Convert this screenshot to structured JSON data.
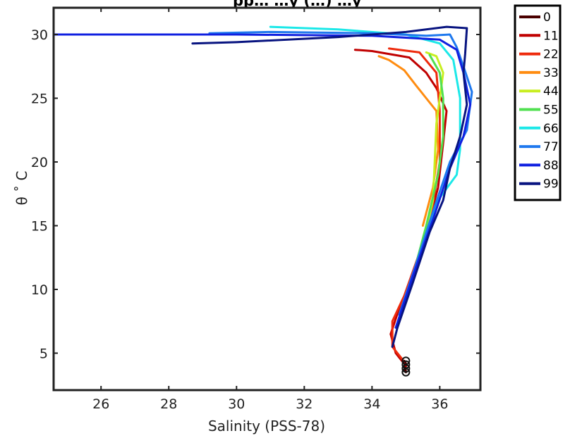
{
  "chart_data": {
    "type": "line",
    "title": "pp…    …y (…) …y",
    "xlabel": "Salinity (PSS-78)",
    "ylabel": "θ ˚ C",
    "xlim": [
      24.6,
      37.2
    ],
    "ylim": [
      2.1,
      32.1
    ],
    "xticks": [
      26,
      28,
      30,
      32,
      34,
      36
    ],
    "yticks": [
      5,
      10,
      15,
      20,
      25,
      30
    ],
    "grid": false,
    "legend_position": "outside-top-right",
    "legend": [
      "0",
      "11",
      "22",
      "33",
      "44",
      "55",
      "66",
      "77",
      "88",
      "99"
    ],
    "colormap": "jet",
    "series": [
      {
        "name": "0",
        "color": "#4a0000",
        "points": [
          [
            35.0,
            3.6
          ],
          [
            34.95,
            3.9
          ],
          [
            35.0,
            4.2
          ],
          [
            34.95,
            4.4
          ],
          [
            35.0,
            4.0
          ],
          [
            34.95,
            3.6
          ],
          [
            35.0,
            3.5
          ]
        ]
      },
      {
        "name": "11",
        "color": "#c00000",
        "points": [
          [
            35.0,
            4.0
          ],
          [
            34.7,
            5.0
          ],
          [
            34.55,
            6.5
          ],
          [
            34.8,
            8.5
          ],
          [
            35.2,
            11.0
          ],
          [
            35.6,
            14.5
          ],
          [
            35.95,
            18.0
          ],
          [
            36.1,
            21.5
          ],
          [
            36.2,
            24.0
          ],
          [
            35.9,
            25.8
          ],
          [
            35.6,
            27.0
          ],
          [
            35.1,
            28.2
          ],
          [
            34.0,
            28.7
          ],
          [
            33.5,
            28.8
          ]
        ]
      },
      {
        "name": "22",
        "color": "#ee2a0c",
        "points": [
          [
            34.9,
            4.5
          ],
          [
            34.6,
            5.5
          ],
          [
            34.6,
            7.5
          ],
          [
            34.95,
            9.5
          ],
          [
            35.35,
            12.5
          ],
          [
            35.75,
            16.0
          ],
          [
            36.0,
            20.0
          ],
          [
            36.0,
            24.0
          ],
          [
            35.9,
            27.0
          ],
          [
            35.4,
            28.6
          ],
          [
            34.5,
            28.9
          ]
        ]
      },
      {
        "name": "33",
        "color": "#ff8c10",
        "points": [
          [
            35.5,
            15.0
          ],
          [
            35.8,
            18.0
          ],
          [
            35.95,
            21.0
          ],
          [
            35.9,
            24.0
          ],
          [
            35.6,
            25.0
          ],
          [
            35.3,
            26.0
          ],
          [
            34.95,
            27.2
          ],
          [
            34.5,
            28.0
          ],
          [
            34.2,
            28.3
          ]
        ]
      },
      {
        "name": "44",
        "color": "#c8ee20",
        "points": [
          [
            35.1,
            10.0
          ],
          [
            35.55,
            14.0
          ],
          [
            35.8,
            17.0
          ],
          [
            35.85,
            20.0
          ],
          [
            35.9,
            23.0
          ],
          [
            36.0,
            25.0
          ],
          [
            36.1,
            27.0
          ],
          [
            35.9,
            28.3
          ],
          [
            35.6,
            28.6
          ]
        ]
      },
      {
        "name": "55",
        "color": "#50e050",
        "points": [
          [
            35.2,
            11.0
          ],
          [
            35.6,
            15.0
          ],
          [
            35.95,
            19.0
          ],
          [
            36.1,
            22.0
          ],
          [
            36.1,
            25.0
          ],
          [
            36.0,
            27.0
          ],
          [
            35.7,
            28.4
          ]
        ]
      },
      {
        "name": "66",
        "color": "#1ce8e8",
        "points": [
          [
            35.0,
            9.0
          ],
          [
            35.5,
            13.5
          ],
          [
            35.95,
            17.0
          ],
          [
            36.5,
            19.0
          ],
          [
            36.6,
            21.0
          ],
          [
            36.6,
            25.0
          ],
          [
            36.4,
            28.0
          ],
          [
            36.0,
            29.3
          ],
          [
            35.0,
            30.0
          ],
          [
            33.0,
            30.4
          ],
          [
            31.0,
            30.6
          ]
        ]
      },
      {
        "name": "77",
        "color": "#1e78ee",
        "points": [
          [
            34.8,
            8.0
          ],
          [
            35.3,
            12.0
          ],
          [
            35.85,
            16.5
          ],
          [
            36.3,
            20.0
          ],
          [
            36.8,
            22.5
          ],
          [
            36.95,
            25.5
          ],
          [
            36.7,
            27.5
          ],
          [
            36.5,
            29.0
          ],
          [
            36.3,
            30.0
          ],
          [
            35.6,
            29.9
          ],
          [
            34.0,
            30.1
          ],
          [
            31.0,
            30.2
          ],
          [
            29.2,
            30.1
          ]
        ]
      },
      {
        "name": "88",
        "color": "#1020e0",
        "points": [
          [
            34.7,
            7.0
          ],
          [
            35.2,
            11.0
          ],
          [
            35.8,
            15.5
          ],
          [
            36.3,
            19.5
          ],
          [
            36.7,
            22.0
          ],
          [
            36.9,
            24.5
          ],
          [
            36.7,
            27.0
          ],
          [
            36.5,
            28.8
          ],
          [
            36.0,
            29.6
          ],
          [
            34.0,
            29.9
          ],
          [
            30.0,
            30.0
          ],
          [
            27.0,
            30.0
          ],
          [
            24.6,
            30.0
          ]
        ]
      },
      {
        "name": "99",
        "color": "#081480",
        "points": [
          [
            34.6,
            5.5
          ],
          [
            34.75,
            7.0
          ],
          [
            35.2,
            10.5
          ],
          [
            35.7,
            14.5
          ],
          [
            36.1,
            17.0
          ],
          [
            36.3,
            19.5
          ],
          [
            36.6,
            22.0
          ],
          [
            36.8,
            24.5
          ],
          [
            36.7,
            27.0
          ],
          [
            36.75,
            28.5
          ],
          [
            36.8,
            30.5
          ],
          [
            36.2,
            30.6
          ],
          [
            35.0,
            30.2
          ],
          [
            33.0,
            29.8
          ],
          [
            30.0,
            29.4
          ],
          [
            28.7,
            29.3
          ]
        ]
      }
    ]
  }
}
